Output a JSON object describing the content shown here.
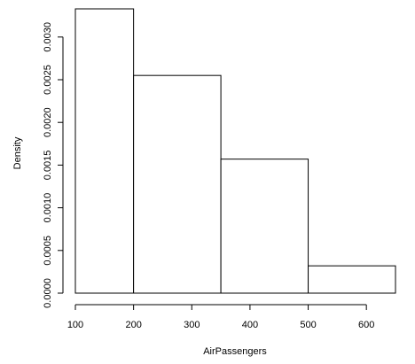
{
  "chart_data": {
    "type": "histogram",
    "title": "",
    "xlabel": "AirPassengers",
    "ylabel": "Density",
    "bins": [
      {
        "start": 100,
        "end": 200,
        "density": 0.00333
      },
      {
        "start": 200,
        "end": 350,
        "density": 0.00255
      },
      {
        "start": 350,
        "end": 500,
        "density": 0.00157
      },
      {
        "start": 500,
        "end": 650,
        "density": 0.00032
      }
    ],
    "x_ticks": [
      100,
      200,
      300,
      400,
      500,
      600
    ],
    "y_ticks": [
      "0.0000",
      "0.0005",
      "0.0010",
      "0.0015",
      "0.0020",
      "0.0025",
      "0.0030"
    ],
    "xlim": [
      100,
      650
    ],
    "ylim": [
      0,
      0.00333
    ],
    "grid": false
  }
}
